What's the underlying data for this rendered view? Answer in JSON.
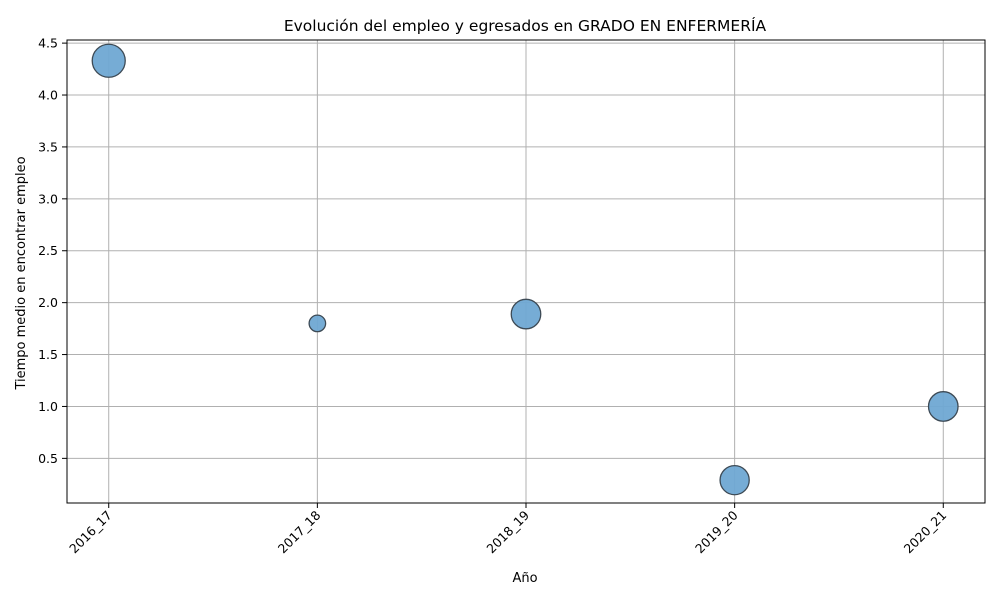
{
  "chart_data": {
    "type": "scatter",
    "title": "Evolución del empleo y egresados en GRADO EN ENFERMERÍA",
    "xlabel": "Año",
    "ylabel": "Tiempo medio en encontrar empleo",
    "categories": [
      "2016_17",
      "2017_18",
      "2018_19",
      "2019_20",
      "2020_21"
    ],
    "y": [
      4.33,
      1.8,
      1.89,
      0.29,
      1.0
    ],
    "bubble_size": [
      100,
      25,
      80,
      78,
      80
    ],
    "ylim": [
      0.07,
      4.53
    ],
    "yticks": [
      0.5,
      1.0,
      1.5,
      2.0,
      2.5,
      3.0,
      3.5,
      4.0,
      4.5
    ],
    "ytick_labels": [
      "0.5",
      "1.0",
      "1.5",
      "2.0",
      "2.5",
      "3.0",
      "3.5",
      "4.0",
      "4.5"
    ],
    "grid": true,
    "legend": "none",
    "colors": {
      "marker_fill": "#6fa8d3",
      "marker_edge": "#3d4a55",
      "grid": "#b0b0b0",
      "axis": "#000000"
    }
  }
}
